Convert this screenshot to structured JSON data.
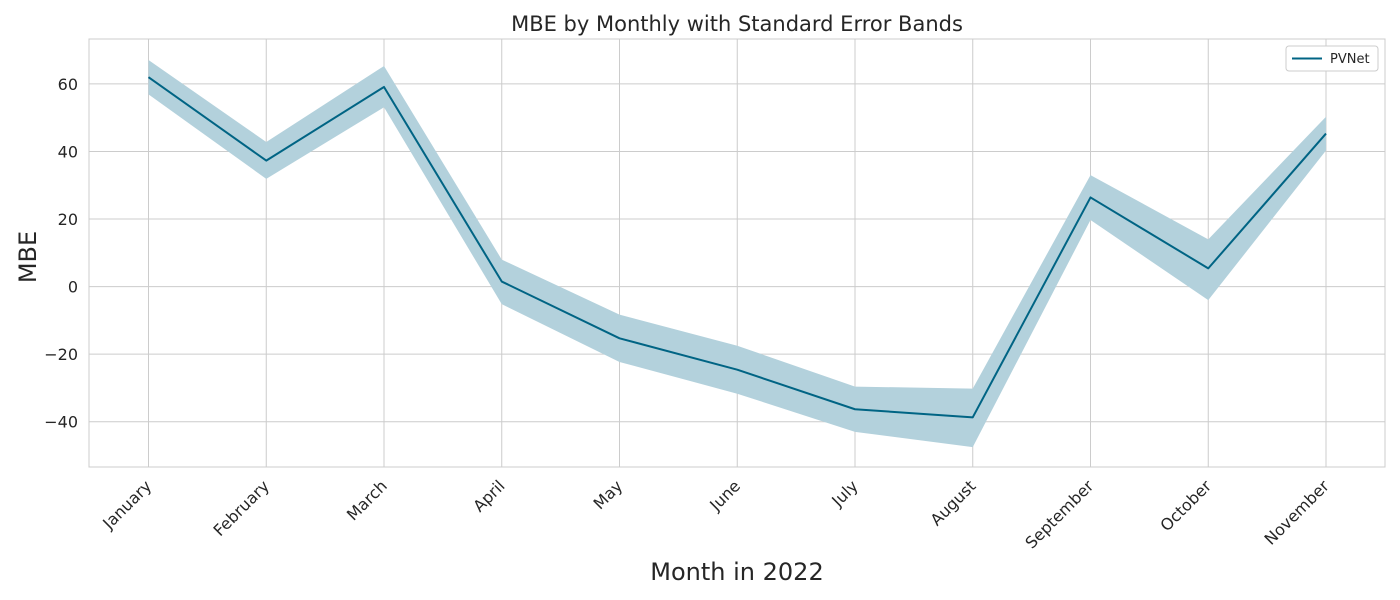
{
  "chart_data": {
    "type": "line",
    "title": "MBE by Monthly with Standard Error Bands",
    "xlabel": "Month in 2022",
    "ylabel": "MBE",
    "categories": [
      "January",
      "February",
      "March",
      "April",
      "May",
      "June",
      "July",
      "August",
      "September",
      "October",
      "November"
    ],
    "yticks": [
      -40,
      -20,
      0,
      20,
      40,
      60
    ],
    "ytick_labels": [
      "−40",
      "−20",
      "0",
      "20",
      "40",
      "60"
    ],
    "ylim": [
      -53.4,
      73.3
    ],
    "grid": true,
    "legend_position": "top-right",
    "series": [
      {
        "name": "PVNet",
        "color": "#006484",
        "band_color": "#b3d1dc",
        "values": [
          62.0,
          37.3,
          59.1,
          1.5,
          -15.3,
          -24.6,
          -36.3,
          -38.7,
          26.4,
          5.4,
          45.3
        ],
        "upper": [
          67.1,
          42.8,
          65.3,
          8.0,
          -8.3,
          -17.5,
          -29.6,
          -30.2,
          33.0,
          14.0,
          50.3
        ],
        "lower": [
          56.9,
          31.9,
          53.1,
          -5.2,
          -22.3,
          -31.7,
          -43.0,
          -47.5,
          19.7,
          -4.0,
          40.3
        ]
      }
    ]
  }
}
